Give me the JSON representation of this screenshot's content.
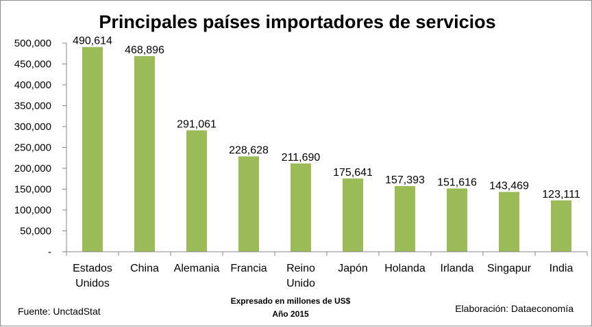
{
  "chart_data": {
    "type": "bar",
    "title": "Principales países importadores de servicios",
    "categories": [
      "Estados Unidos",
      "China",
      "Alemania",
      "Francia",
      "Reino Unido",
      "Japón",
      "Holanda",
      "Irlanda",
      "Singapur",
      "India"
    ],
    "category_lines": [
      [
        "Estados",
        "Unidos"
      ],
      [
        "China"
      ],
      [
        "Alemania"
      ],
      [
        "Francia"
      ],
      [
        "Reino",
        "Unido"
      ],
      [
        "Japón"
      ],
      [
        "Holanda"
      ],
      [
        "Irlanda"
      ],
      [
        "Singapur"
      ],
      [
        "India"
      ]
    ],
    "values": [
      490614,
      468896,
      291061,
      228628,
      211690,
      175641,
      157393,
      151616,
      143469,
      123111
    ],
    "data_labels": [
      "490,614",
      "468,896",
      "291,061",
      "228,628",
      "211,690",
      "175,641",
      "157,393",
      "151,616",
      "143,469",
      "123,111"
    ],
    "ylim": [
      0,
      500000
    ],
    "ytick_values": [
      0,
      50000,
      100000,
      150000,
      200000,
      250000,
      300000,
      350000,
      400000,
      450000,
      500000
    ],
    "ytick_labels": [
      "-",
      "50,000",
      "100,000",
      "150,000",
      "200,000",
      "250,000",
      "300,000",
      "350,000",
      "400,000",
      "450,000",
      "500,000"
    ],
    "grid": false,
    "legend": "none",
    "bar_color": "#9bbb59"
  },
  "footer": {
    "source": "Fuente: UnctadStat",
    "note_line1": "Expresado en millones de US$",
    "note_line2": "Año 2015",
    "credit": "Elaboración: Dataeconomía"
  }
}
